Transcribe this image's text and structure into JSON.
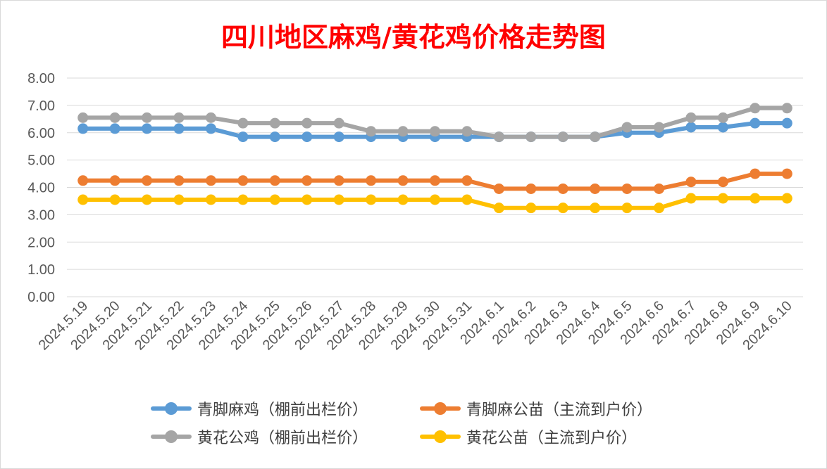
{
  "chart_data": {
    "type": "line",
    "title": "四川地区麻鸡/黄花鸡价格走势图",
    "xlabel": "",
    "ylabel": "",
    "ylim": [
      0,
      8
    ],
    "yticks": [
      "0.00",
      "1.00",
      "2.00",
      "3.00",
      "4.00",
      "5.00",
      "6.00",
      "7.00",
      "8.00"
    ],
    "grid": true,
    "legend_position": "bottom",
    "categories": [
      "2024.5.19",
      "2024.5.20",
      "2024.5.21",
      "2024.5.22",
      "2024.5.23",
      "2024.5.24",
      "2024.5.25",
      "2024.5.26",
      "2024.5.27",
      "2024.5.28",
      "2024.5.29",
      "2024.5.30",
      "2024.5.31",
      "2024.6.1",
      "2024.6.2",
      "2024.6.3",
      "2024.6.4",
      "2024.6.5",
      "2024.6.6",
      "2024.6.7",
      "2024.6.8",
      "2024.6.9",
      "2024.6.10"
    ],
    "series": [
      {
        "name": "青脚麻鸡（棚前出栏价）",
        "color": "#5b9bd5",
        "values": [
          6.15,
          6.15,
          6.15,
          6.15,
          6.15,
          5.85,
          5.85,
          5.85,
          5.85,
          5.85,
          5.85,
          5.85,
          5.85,
          5.85,
          5.85,
          5.85,
          5.85,
          6.0,
          6.0,
          6.2,
          6.2,
          6.35,
          6.35
        ]
      },
      {
        "name": "青脚麻公苗（主流到户价）",
        "color": "#ed7d31",
        "values": [
          4.25,
          4.25,
          4.25,
          4.25,
          4.25,
          4.25,
          4.25,
          4.25,
          4.25,
          4.25,
          4.25,
          4.25,
          4.25,
          3.95,
          3.95,
          3.95,
          3.95,
          3.95,
          3.95,
          4.2,
          4.2,
          4.5,
          4.5
        ]
      },
      {
        "name": "黄花公鸡（棚前出栏价）",
        "color": "#a5a5a5",
        "values": [
          6.55,
          6.55,
          6.55,
          6.55,
          6.55,
          6.35,
          6.35,
          6.35,
          6.35,
          6.05,
          6.05,
          6.05,
          6.05,
          5.85,
          5.85,
          5.85,
          5.85,
          6.2,
          6.2,
          6.55,
          6.55,
          6.9,
          6.9
        ]
      },
      {
        "name": "黄花公苗（主流到户价）",
        "color": "#ffc000",
        "values": [
          3.55,
          3.55,
          3.55,
          3.55,
          3.55,
          3.55,
          3.55,
          3.55,
          3.55,
          3.55,
          3.55,
          3.55,
          3.55,
          3.25,
          3.25,
          3.25,
          3.25,
          3.25,
          3.25,
          3.6,
          3.6,
          3.6,
          3.6
        ]
      }
    ]
  }
}
